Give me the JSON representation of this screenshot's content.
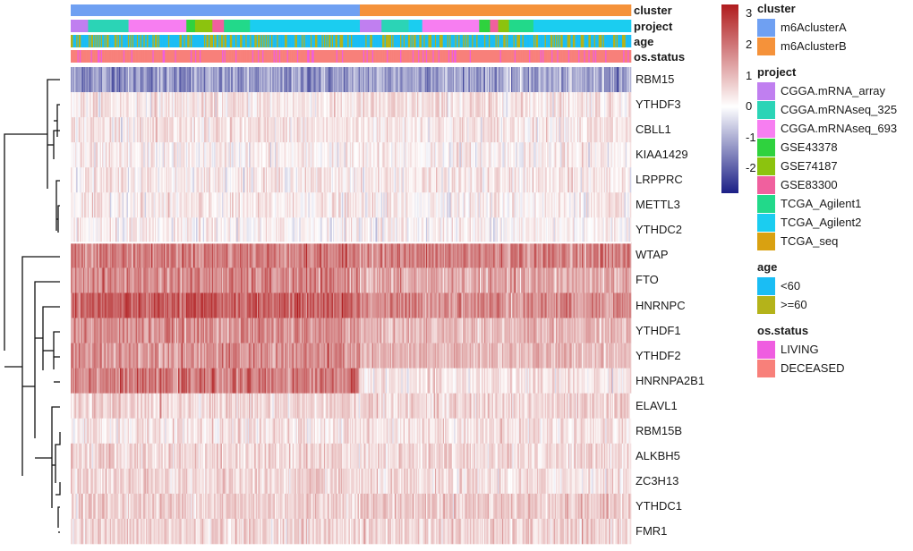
{
  "chart_data": {
    "type": "heatmap",
    "title": "",
    "genes": [
      "RBM15",
      "YTHDF3",
      "CBLL1",
      "KIAA1429",
      "LRPPRC",
      "METTL3",
      "YTHDC2",
      "WTAP",
      "FTO",
      "HNRNPC",
      "YTHDF1",
      "YTHDF2",
      "HNRNPA2B1",
      "ELAVL1",
      "RBM15B",
      "ALKBH5",
      "ZC3H13",
      "YTHDC1",
      "FMR1"
    ],
    "mean_z_by_cluster": {
      "m6AclusterA": [
        -1.3,
        0.35,
        0.35,
        0.15,
        0.3,
        0.25,
        0.1,
        1.9,
        1.7,
        2.3,
        1.6,
        1.6,
        1.9,
        0.6,
        0.35,
        0.6,
        0.55,
        0.7,
        0.6
      ],
      "m6AclusterB": [
        -1.1,
        0.4,
        0.35,
        0.2,
        0.3,
        0.2,
        0.15,
        1.8,
        1.2,
        1.7,
        1.0,
        1.0,
        0.35,
        0.55,
        0.45,
        0.55,
        0.4,
        0.8,
        0.6
      ]
    },
    "cluster_fraction": {
      "m6AclusterA": 0.516,
      "m6AclusterB": 0.484
    },
    "color_scale": {
      "min": -2.8,
      "max": 3.3,
      "ticks": [
        3,
        2,
        1,
        0,
        -1,
        -2
      ],
      "low_color": "#1b1f86",
      "mid_color": "#ffffff",
      "high_color": "#b01c1e"
    },
    "annotation_rows": [
      "cluster",
      "project",
      "age",
      "os.status"
    ],
    "legends": {
      "cluster": {
        "title": "cluster",
        "items": [
          {
            "label": "m6AclusterA",
            "color": "#6fa0f2"
          },
          {
            "label": "m6AclusterB",
            "color": "#f5923a"
          }
        ]
      },
      "project": {
        "title": "project",
        "items": [
          {
            "label": "CGGA.mRNA_array",
            "color": "#c07ff0"
          },
          {
            "label": "CGGA.mRNAseq_325",
            "color": "#2bd4b6"
          },
          {
            "label": "CGGA.mRNAseq_693",
            "color": "#f77ef1"
          },
          {
            "label": "GSE43378",
            "color": "#2fd23e"
          },
          {
            "label": "GSE74187",
            "color": "#8cc30e"
          },
          {
            "label": "GSE83300",
            "color": "#f0609e"
          },
          {
            "label": "TCGA_Agilent1",
            "color": "#22d98a"
          },
          {
            "label": "TCGA_Agilent2",
            "color": "#1bcdf0"
          },
          {
            "label": "TCGA_seq",
            "color": "#d9a111"
          }
        ]
      },
      "age": {
        "title": "age",
        "items": [
          {
            "label": "<60",
            "color": "#1abdf4"
          },
          {
            "label": ">=60",
            "color": "#b4b31a"
          }
        ]
      },
      "os_status": {
        "title": "os.status",
        "items": [
          {
            "label": "LIVING",
            "color": "#ef5de0"
          },
          {
            "label": "DECEASED",
            "color": "#f8807a"
          }
        ]
      }
    },
    "project_segments": {
      "m6AclusterA": [
        {
          "project": "CGGA.mRNA_array",
          "frac": 0.06
        },
        {
          "project": "CGGA.mRNAseq_325",
          "frac": 0.14
        },
        {
          "project": "CGGA.mRNAseq_693",
          "frac": 0.2
        },
        {
          "project": "GSE43378",
          "frac": 0.03
        },
        {
          "project": "GSE74187",
          "frac": 0.06
        },
        {
          "project": "GSE83300",
          "frac": 0.04
        },
        {
          "project": "TCGA_Agilent1",
          "frac": 0.09
        },
        {
          "project": "TCGA_Agilent2",
          "frac": 0.38
        }
      ],
      "m6AclusterB": [
        {
          "project": "CGGA.mRNA_array",
          "frac": 0.08
        },
        {
          "project": "CGGA.mRNAseq_325",
          "frac": 0.1
        },
        {
          "project": "TCGA_Agilent2",
          "frac": 0.05
        },
        {
          "project": "CGGA.mRNAseq_693",
          "frac": 0.21
        },
        {
          "project": "GSE43378",
          "frac": 0.04
        },
        {
          "project": "GSE83300",
          "frac": 0.03
        },
        {
          "project": "GSE74187",
          "frac": 0.04
        },
        {
          "project": "TCGA_Agilent1",
          "frac": 0.09
        },
        {
          "project": "TCGA_Agilent2",
          "frac": 0.36
        }
      ]
    }
  }
}
